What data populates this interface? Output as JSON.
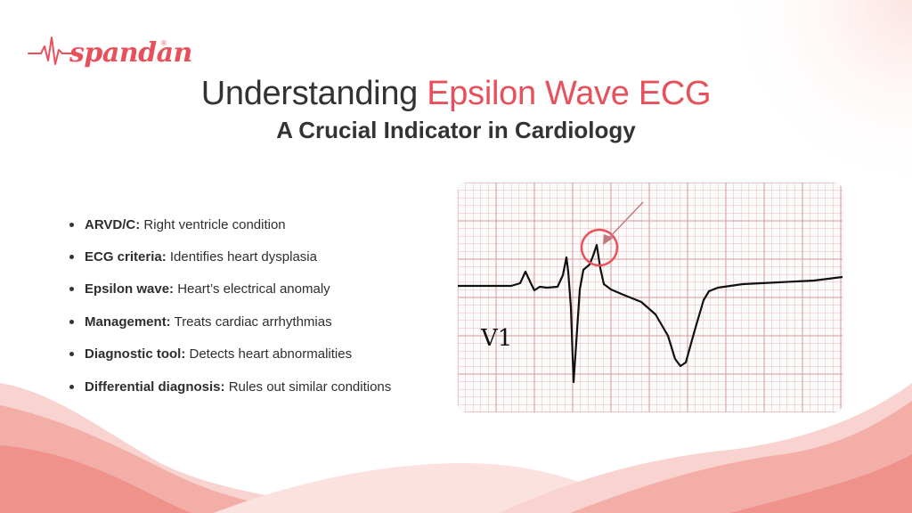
{
  "logo": {
    "text": "spandan",
    "reg": "®"
  },
  "title": {
    "part1": "Understanding ",
    "accent": "Epsilon Wave ECG"
  },
  "subtitle": "A Crucial Indicator in Cardiology",
  "bullets": [
    {
      "term": "ARVD/C:",
      "desc": " Right ventricle condition"
    },
    {
      "term": "ECG criteria:",
      "desc": " Identifies heart dysplasia"
    },
    {
      "term": "Epsilon wave:",
      "desc": " Heart’s electrical anomaly"
    },
    {
      "term": "Management:",
      "desc": " Treats cardiac arrhythmias"
    },
    {
      "term": "Diagnostic tool:",
      "desc": " Detects heart abnormalities"
    },
    {
      "term": "Differential diagnosis:",
      "desc": " Rules out similar conditions"
    }
  ],
  "ecg": {
    "lead": "V1"
  },
  "colors": {
    "accent": "#e8505b",
    "wave_light": "#f8cfcb",
    "wave_mid": "#f3a59f",
    "wave_dark": "#ee8a84"
  }
}
